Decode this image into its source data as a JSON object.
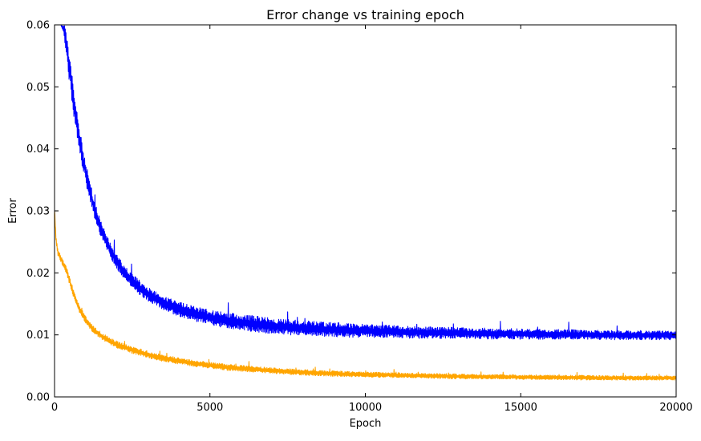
{
  "chart_data": {
    "type": "line",
    "title": "Error change vs training epoch",
    "xlabel": "Epoch",
    "ylabel": "Error",
    "xlim": [
      0,
      20000
    ],
    "ylim": [
      0,
      0.06
    ],
    "xticks": [
      0,
      5000,
      10000,
      15000,
      20000
    ],
    "xtick_labels": [
      "0",
      "5000",
      "10000",
      "15000",
      "20000"
    ],
    "yticks": [
      0,
      0.01,
      0.02,
      0.03,
      0.04,
      0.05,
      0.06
    ],
    "ytick_labels": [
      "0.00",
      "0.01",
      "0.02",
      "0.03",
      "0.04",
      "0.05",
      "0.06"
    ],
    "grid": false,
    "legend": "none",
    "series": [
      {
        "color": "#0000ff",
        "x": [
          0,
          200,
          300,
          400,
          500,
          600,
          700,
          800,
          900,
          1000,
          1100,
          1200,
          1300,
          1400,
          1500,
          1600,
          1700,
          1800,
          1900,
          2000,
          2200,
          2400,
          2600,
          2800,
          3000,
          3200,
          3400,
          3600,
          3800,
          4000,
          4500,
          5000,
          5500,
          6000,
          6500,
          7000,
          7500,
          8000,
          8500,
          9000,
          9500,
          10000,
          11000,
          12000,
          13000,
          14000,
          15000,
          16000,
          17000,
          18000,
          19000,
          20000
        ],
        "lower": [
          0.06,
          0.06,
          0.0585,
          0.054,
          0.0498,
          0.046,
          0.0425,
          0.0395,
          0.0368,
          0.0344,
          0.0322,
          0.0303,
          0.0286,
          0.027,
          0.0257,
          0.0245,
          0.0234,
          0.0224,
          0.0215,
          0.0207,
          0.0193,
          0.0181,
          0.0171,
          0.0162,
          0.0155,
          0.0148,
          0.0143,
          0.0138,
          0.0134,
          0.013,
          0.0122,
          0.0116,
          0.0111,
          0.0107,
          0.0104,
          0.0102,
          0.01,
          0.0099,
          0.0098,
          0.0097,
          0.0096,
          0.0096,
          0.0095,
          0.0094,
          0.0094,
          0.0093,
          0.0093,
          0.0093,
          0.0093,
          0.0092,
          0.0092,
          0.0092
        ],
        "upper": [
          0.06,
          0.06,
          0.06,
          0.0585,
          0.0545,
          0.0505,
          0.0468,
          0.0435,
          0.0405,
          0.038,
          0.0356,
          0.0335,
          0.0316,
          0.0298,
          0.0284,
          0.027,
          0.0258,
          0.0248,
          0.0238,
          0.023,
          0.0215,
          0.0204,
          0.0194,
          0.0185,
          0.0178,
          0.0172,
          0.0166,
          0.0161,
          0.0157,
          0.0153,
          0.0146,
          0.014,
          0.0136,
          0.0133,
          0.013,
          0.0127,
          0.0125,
          0.0123,
          0.0121,
          0.012,
          0.0118,
          0.0117,
          0.0115,
          0.0113,
          0.0112,
          0.0111,
          0.011,
          0.0109,
          0.0108,
          0.0107,
          0.0107,
          0.0106
        ]
      },
      {
        "color": "#ffa500",
        "x": [
          0,
          50,
          100,
          200,
          300,
          400,
          500,
          600,
          700,
          800,
          900,
          1000,
          1100,
          1200,
          1400,
          1600,
          1800,
          2000,
          2500,
          3000,
          3500,
          4000,
          4500,
          5000,
          5500,
          6000,
          7000,
          8000,
          9000,
          10000,
          11000,
          12000,
          13000,
          14000,
          15000,
          16000,
          17000,
          18000,
          19000,
          20000
        ],
        "lower": [
          0.03,
          0.0245,
          0.0228,
          0.0218,
          0.0208,
          0.0196,
          0.0178,
          0.0161,
          0.0147,
          0.0136,
          0.0127,
          0.0119,
          0.0112,
          0.0106,
          0.0097,
          0.009,
          0.0084,
          0.0079,
          0.007,
          0.0063,
          0.0057,
          0.0053,
          0.0049,
          0.0046,
          0.0043,
          0.0041,
          0.0038,
          0.0035,
          0.0033,
          0.0032,
          0.0031,
          0.003,
          0.0029,
          0.0029,
          0.0028,
          0.0028,
          0.0027,
          0.0027,
          0.0027,
          0.0027
        ],
        "upper": [
          0.0305,
          0.026,
          0.024,
          0.0228,
          0.0218,
          0.0208,
          0.0192,
          0.0175,
          0.016,
          0.0148,
          0.0139,
          0.013,
          0.0123,
          0.0117,
          0.0108,
          0.0101,
          0.0095,
          0.009,
          0.0081,
          0.0074,
          0.0068,
          0.0063,
          0.0059,
          0.0056,
          0.0053,
          0.0051,
          0.0047,
          0.0044,
          0.0042,
          0.004,
          0.0039,
          0.0038,
          0.0037,
          0.0036,
          0.0036,
          0.0035,
          0.0035,
          0.0034,
          0.0034,
          0.0034
        ]
      }
    ]
  }
}
